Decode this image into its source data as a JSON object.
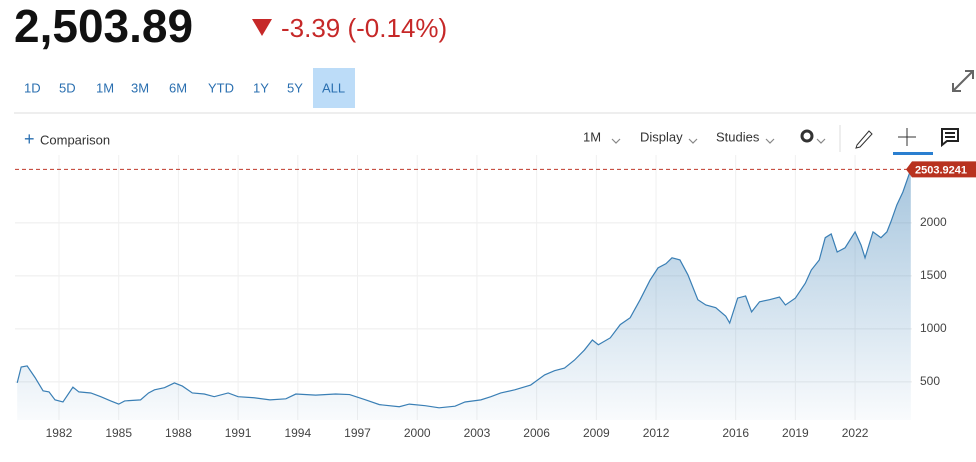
{
  "quote": {
    "price": "2,503.89",
    "change": "-3.39 (-0.14%)"
  },
  "ranges": [
    "1D",
    "5D",
    "1M",
    "3M",
    "6M",
    "YTD",
    "1Y",
    "5Y",
    "ALL"
  ],
  "toolbar": {
    "comparison": "Comparison",
    "interval": "1M",
    "display": "Display",
    "studies": "Studies"
  },
  "chart_data": {
    "type": "area",
    "color": "#3a7fb5",
    "last_value": 2503.9241,
    "x": [
      1979.9,
      1980.1,
      1980.4,
      1980.8,
      1981.2,
      1981.5,
      1981.8,
      1982.2,
      1982.7,
      1983.0,
      1983.6,
      1984.1,
      1984.6,
      1985.0,
      1985.3,
      1986.1,
      1986.5,
      1986.8,
      1987.3,
      1987.8,
      1988.2,
      1988.7,
      1989.3,
      1989.8,
      1990.5,
      1991.0,
      1991.8,
      1992.6,
      1993.4,
      1993.9,
      1994.9,
      1995.9,
      1996.6,
      1997.4,
      1998.1,
      1999.1,
      1999.6,
      2000.4,
      2001.1,
      2001.9,
      2002.4,
      2003.2,
      2003.7,
      2004.2,
      2004.9,
      2005.7,
      2006.4,
      2006.9,
      2007.4,
      2007.9,
      2008.4,
      2008.8,
      2009.1,
      2009.7,
      2010.2,
      2010.7,
      2011.2,
      2011.7,
      2012.1,
      2012.5,
      2012.8,
      2013.2,
      2013.6,
      2014.1,
      2014.5,
      2015.0,
      2015.5,
      2015.7,
      2016.1,
      2016.5,
      2016.8,
      2017.2,
      2017.7,
      2018.2,
      2018.5,
      2019.0,
      2019.5,
      2019.8,
      2020.2,
      2020.5,
      2020.8,
      2021.1,
      2021.5,
      2022.0,
      2022.3,
      2022.5,
      2022.9,
      2023.3,
      2023.6,
      2023.8,
      2024.1,
      2024.4,
      2024.8
    ],
    "values": [
      490,
      640,
      650,
      540,
      415,
      405,
      330,
      310,
      450,
      405,
      395,
      360,
      320,
      290,
      320,
      330,
      395,
      425,
      445,
      490,
      460,
      395,
      385,
      360,
      395,
      360,
      350,
      330,
      340,
      385,
      375,
      385,
      380,
      330,
      285,
      265,
      290,
      275,
      255,
      270,
      310,
      330,
      360,
      395,
      425,
      470,
      565,
      605,
      630,
      705,
      800,
      895,
      850,
      915,
      1040,
      1105,
      1275,
      1460,
      1575,
      1615,
      1670,
      1650,
      1510,
      1275,
      1225,
      1200,
      1120,
      1055,
      1290,
      1310,
      1160,
      1255,
      1275,
      1300,
      1225,
      1290,
      1430,
      1555,
      1650,
      1860,
      1895,
      1725,
      1765,
      1915,
      1790,
      1670,
      1915,
      1860,
      1915,
      2010,
      2170,
      2290,
      2503.9241
    ],
    "xlim": [
      1979.79,
      2024.86
    ],
    "xticks": [
      1982,
      1985,
      1988,
      1991,
      1994,
      1997,
      2000,
      2003,
      2006,
      2009,
      2012,
      2016,
      2019,
      2022
    ],
    "ylim": [
      140,
      2640
    ],
    "yticks": [
      500,
      1000,
      1500,
      2000
    ],
    "grid": true
  }
}
